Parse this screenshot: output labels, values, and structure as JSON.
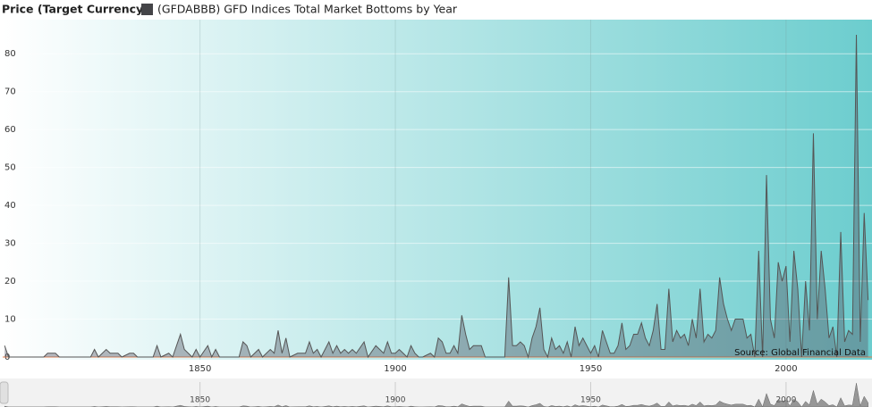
{
  "chart_data": {
    "type": "area",
    "ylabel": "Price (Target Currency)",
    "annotation": "Source: Global Financial Data",
    "x": [
      1800,
      1801,
      1810,
      1811,
      1813,
      1814,
      1822,
      1823,
      1824,
      1826,
      1827,
      1829,
      1830,
      1832,
      1833,
      1834,
      1838,
      1839,
      1840,
      1842,
      1843,
      1845,
      1846,
      1847,
      1848,
      1849,
      1850,
      1852,
      1853,
      1854,
      1855,
      1860,
      1861,
      1862,
      1863,
      1865,
      1866,
      1868,
      1869,
      1870,
      1871,
      1872,
      1873,
      1875,
      1877,
      1878,
      1879,
      1880,
      1881,
      1883,
      1884,
      1885,
      1886,
      1887,
      1888,
      1889,
      1890,
      1892,
      1893,
      1895,
      1896,
      1897,
      1898,
      1899,
      1900,
      1901,
      1902,
      1903,
      1904,
      1905,
      1906,
      1907,
      1909,
      1910,
      1911,
      1912,
      1913,
      1914,
      1915,
      1916,
      1917,
      1918,
      1919,
      1920,
      1921,
      1922,
      1923,
      1928,
      1929,
      1930,
      1931,
      1932,
      1933,
      1934,
      1935,
      1936,
      1937,
      1938,
      1939,
      1940,
      1941,
      1942,
      1943,
      1944,
      1945,
      1946,
      1947,
      1948,
      1949,
      1950,
      1951,
      1952,
      1953,
      1954,
      1955,
      1956,
      1957,
      1958,
      1959,
      1960,
      1961,
      1962,
      1963,
      1964,
      1965,
      1966,
      1967,
      1968,
      1969,
      1970,
      1971,
      1972,
      1973,
      1974,
      1975,
      1976,
      1977,
      1978,
      1979,
      1980,
      1981,
      1982,
      1983,
      1984,
      1985,
      1986,
      1987,
      1988,
      1989,
      1990,
      1991,
      1992,
      1993,
      1994,
      1995,
      1996,
      1997,
      1998,
      1999,
      2000,
      2001,
      2002,
      2003,
      2004,
      2005,
      2006,
      2007,
      2008,
      2009,
      2010,
      2011,
      2012,
      2013,
      2014,
      2015,
      2016,
      2017,
      2018,
      2019,
      2020,
      2021
    ],
    "series": [
      {
        "name": "(GFDABBB) GFD Indices Total Market Bottoms by Year",
        "color": "#444448",
        "values": [
          3,
          0,
          0,
          1,
          1,
          0,
          0,
          2,
          0,
          2,
          1,
          1,
          0,
          1,
          1,
          0,
          0,
          3,
          0,
          1,
          0,
          6,
          2,
          1,
          0,
          2,
          0,
          3,
          0,
          2,
          0,
          0,
          4,
          3,
          0,
          2,
          0,
          2,
          1,
          7,
          1,
          5,
          0,
          1,
          1,
          4,
          1,
          2,
          0,
          4,
          1,
          3,
          1,
          2,
          1,
          2,
          1,
          4,
          0,
          3,
          2,
          1,
          4,
          1,
          1,
          2,
          1,
          0,
          3,
          1,
          0,
          0,
          1,
          0,
          5,
          4,
          1,
          1,
          3,
          1,
          11,
          6,
          2,
          3,
          3,
          3,
          0,
          0,
          21,
          3,
          3,
          4,
          3,
          0,
          5,
          8,
          13,
          2,
          0,
          5,
          2,
          3,
          1,
          4,
          0,
          8,
          3,
          5,
          3,
          1,
          3,
          0,
          7,
          4,
          1,
          1,
          3,
          9,
          2,
          3,
          6,
          6,
          9,
          5,
          3,
          7,
          14,
          2,
          2,
          18,
          4,
          7,
          5,
          6,
          3,
          10,
          5,
          18,
          4,
          6,
          5,
          7,
          21,
          14,
          10,
          7,
          10,
          10,
          10,
          5,
          6,
          0,
          28,
          0,
          48,
          10,
          5,
          25,
          20,
          24,
          4,
          28,
          18,
          0,
          20,
          7,
          59,
          10,
          28,
          18,
          5,
          8,
          0,
          33,
          4,
          7,
          6,
          85,
          4,
          38,
          15
        ]
      }
    ],
    "xlim": [
      1799.5,
      2022
    ],
    "xticks": [
      1850,
      1900,
      1950,
      2000
    ],
    "ylim": [
      0,
      89
    ],
    "yticks": [
      0,
      10,
      20,
      30,
      40,
      50,
      60,
      70,
      80
    ],
    "grid": true
  }
}
